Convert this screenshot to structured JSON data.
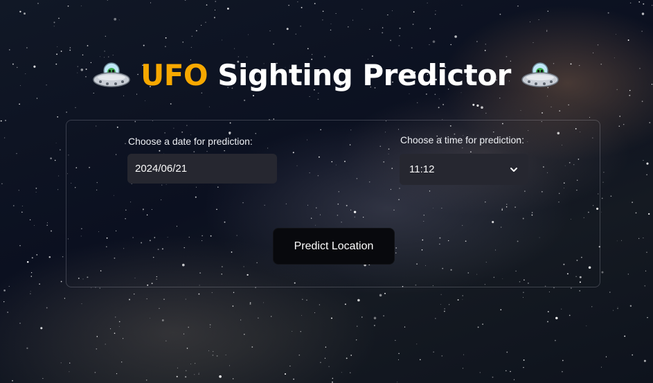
{
  "header": {
    "title_accent": "UFO",
    "title_rest": " Sighting Predictor",
    "left_icon": "flying-saucer-icon",
    "right_icon": "flying-saucer-icon"
  },
  "form": {
    "date_label": "Choose a date for prediction:",
    "date_value": "2024/06/21",
    "time_label": "Choose a time for prediction:",
    "time_value": "11:12",
    "submit_label": "Predict Location"
  },
  "colors": {
    "accent": "#f7a800",
    "input_bg": "#262730",
    "button_bg": "#08090d",
    "text": "#ffffff"
  }
}
